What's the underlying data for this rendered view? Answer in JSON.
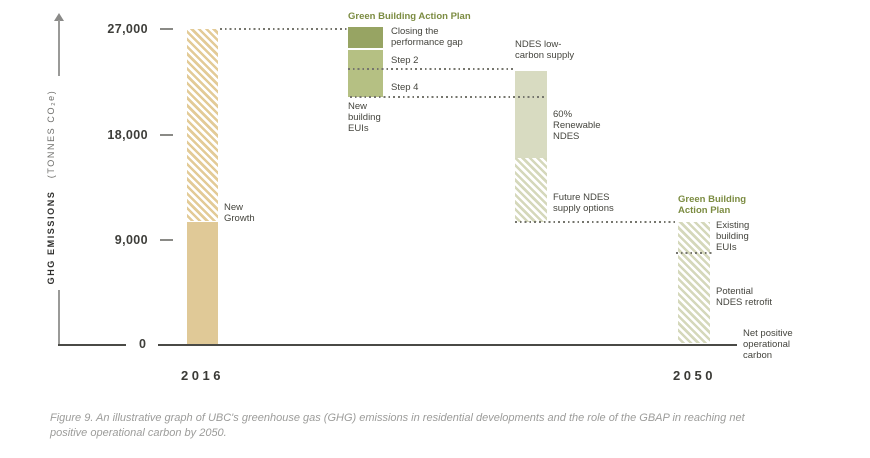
{
  "figure": {
    "caption": "Figure 9. An illustrative graph of UBC's greenhouse gas (GHG) emissions in residential developments and the role of the GBAP in reaching net positive operational carbon by 2050."
  },
  "axis": {
    "y_label_bold": "GHG EMISSIONS",
    "y_label_units": "(TONNES CO₂e)",
    "ytick_27k": "27,000",
    "ytick_18k": "18,000",
    "ytick_9k": "9,000",
    "ytick_0": "0",
    "xtick_left": "2016",
    "xtick_right": "2050"
  },
  "labels": {
    "gbap_title_new": "Green Building Action Plan",
    "gbap_title_existing": [
      "Green Building",
      "Action Plan"
    ],
    "new_growth": [
      "New",
      "Growth"
    ],
    "closing_gap": [
      "Closing the",
      "performance gap"
    ],
    "step2": "Step 2",
    "step4": "Step 4",
    "new_building_euis": [
      "New",
      "building",
      "EUIs"
    ],
    "ndes_supply": [
      "NDES low-",
      "carbon supply"
    ],
    "renewable_ndes": [
      "60%",
      "Renewable",
      "NDES"
    ],
    "future_ndes": [
      "Future NDES",
      "supply options"
    ],
    "existing_euis": [
      "Existing",
      "building",
      "EUIs"
    ],
    "ndes_retrofit": [
      "Potential",
      "NDES retrofit"
    ],
    "net_positive": [
      "Net positive",
      "operational",
      "carbon"
    ]
  },
  "colors": {
    "tan_solid": "#e0c997",
    "tan_hatch": "#e3cb97",
    "olive_dark": "#97a463",
    "olive_light": "#b5c083",
    "sage_solid": "#d8dbc1",
    "sage_hatch": "#d5d8bb",
    "green_title": "#7c8c42",
    "dot_gray": "#75756d",
    "axis_dark": "#4a4a46"
  },
  "chart_data": {
    "type": "waterfall",
    "title": "",
    "ylabel": "GHG EMISSIONS (TONNES CO₂e)",
    "ylim": [
      0,
      27000
    ],
    "yticks": [
      0,
      9000,
      18000,
      27000
    ],
    "x_categories": [
      "2016",
      "2050"
    ],
    "columns": [
      {
        "category": "2016",
        "segments": [
          {
            "label": "2016 emissions (solid)",
            "from": 0,
            "to": 10500,
            "style": "solid-tan"
          },
          {
            "label": "New Growth",
            "from": 10500,
            "to": 27000,
            "style": "hatched-tan"
          }
        ]
      },
      {
        "category": "Green Building Action Plan — New building EUIs",
        "segments": [
          {
            "label": "Closing the performance gap",
            "from": 27000,
            "to": 25400,
            "style": "solid-olive-dark"
          },
          {
            "label": "Step 2",
            "from": 25400,
            "to": 23500,
            "style": "solid-olive-light"
          },
          {
            "label": "Step 4",
            "from": 23500,
            "to": 21300,
            "style": "solid-olive-light"
          }
        ]
      },
      {
        "category": "NDES low-carbon supply",
        "segments": [
          {
            "label": "60% Renewable NDES",
            "from": 23500,
            "to": 16000,
            "style": "solid-sage"
          },
          {
            "label": "Future NDES supply options",
            "from": 16000,
            "to": 10500,
            "style": "hatched-sage"
          }
        ]
      },
      {
        "category": "2050 — Green Building Action Plan",
        "segments": [
          {
            "label": "Existing building EUIs",
            "from": 10500,
            "to": 8000,
            "style": "hatched-sage"
          },
          {
            "label": "Potential NDES retrofit",
            "from": 8000,
            "to": 0,
            "style": "hatched-sage"
          }
        ],
        "endpoint": "Net positive operational carbon (0 tonnes)"
      }
    ],
    "connectors": [
      {
        "at": 27000,
        "between": [
          "2016",
          "GBAP new buildings"
        ]
      },
      {
        "at": 23500,
        "between": [
          "Step 2",
          "NDES low-carbon supply"
        ]
      },
      {
        "at": 21300,
        "between": [
          "Step 4",
          "NDES bar right edge"
        ]
      },
      {
        "at": 10500,
        "between": [
          "Future NDES supply options",
          "2050"
        ]
      },
      {
        "at": 8000,
        "between": [
          "Existing building EUIs boundary"
        ]
      }
    ],
    "legend_position": "none",
    "grid": false
  }
}
